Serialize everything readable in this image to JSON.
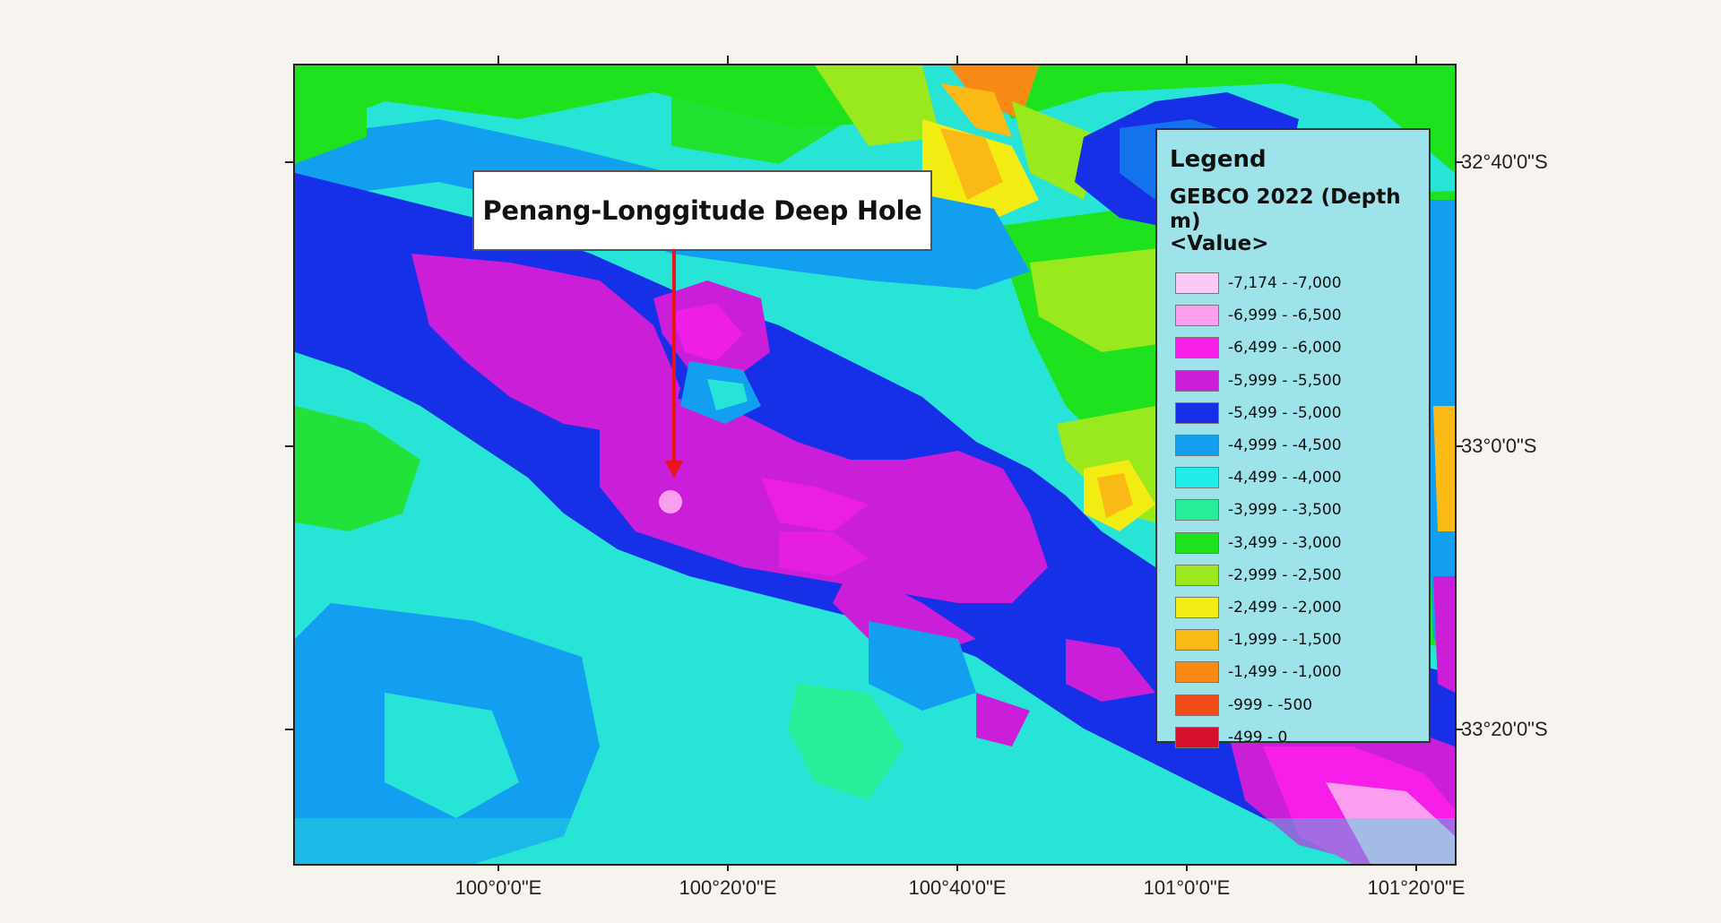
{
  "map": {
    "callout_label": "Penang-Longgitude Deep Hole",
    "longitude_labels": [
      "100°0'0\"E",
      "100°20'0\"E",
      "100°40'0\"E",
      "101°0'0\"E",
      "101°20'0\"E"
    ],
    "latitude_labels": [
      "32°40'0\"S",
      "33°0'0\"S",
      "33°20'0\"S"
    ],
    "marker_color": "#e8141e"
  },
  "legend": {
    "title": "Legend",
    "subtitle": "GEBCO 2022 (Depth m)",
    "value_label": "<Value>",
    "items": [
      {
        "label": "-7,174 - -7,000",
        "color": "#fbc9f3"
      },
      {
        "label": "-6,999 - -6,500",
        "color": "#fb9ef0"
      },
      {
        "label": "-6,499 - -6,000",
        "color": "#f61ee8"
      },
      {
        "label": "-5,999 - -5,500",
        "color": "#cb1ed9"
      },
      {
        "label": "-5,499 - -5,000",
        "color": "#1530e6"
      },
      {
        "label": "-4,999 - -4,500",
        "color": "#139ff0"
      },
      {
        "label": "-4,499 - -4,000",
        "color": "#22ece8"
      },
      {
        "label": "-3,999 - -3,500",
        "color": "#28ee9a"
      },
      {
        "label": "-3,499 - -3,000",
        "color": "#1fe21f"
      },
      {
        "label": "-2,999 - -2,500",
        "color": "#9ae81e"
      },
      {
        "label": "-2,499 - -2,000",
        "color": "#f3ec12"
      },
      {
        "label": "-1,999 - -1,500",
        "color": "#fbb916"
      },
      {
        "label": "-1,499 - -1,000",
        "color": "#fa8a16"
      },
      {
        "label": "-999 - -500",
        "color": "#f24c1b"
      },
      {
        "label": "-499 - 0",
        "color": "#d6102a"
      }
    ]
  }
}
